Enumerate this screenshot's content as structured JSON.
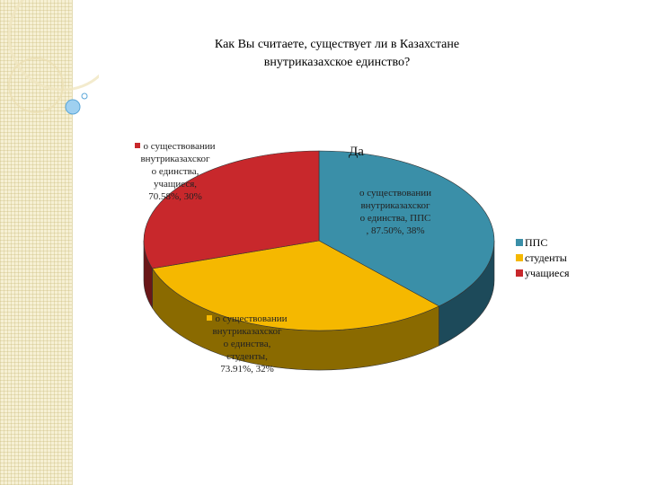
{
  "title_lines": [
    "Как Вы считаете, существует ли в Казахстане",
    "внутриказахское  единство?"
  ],
  "header_label": "Да",
  "data_labels": [
    {
      "lines": [
        "о существовании",
        "внутриказахског",
        "о единства, ППС",
        ", 87.50%, 38%"
      ],
      "color": "#3a8fa8"
    },
    {
      "lines": [
        "о существовании",
        "внутриказахског",
        "о единства,",
        "студенты,",
        "73.91%, 32%"
      ],
      "color": "#f5b800"
    },
    {
      "lines": [
        "о существовании",
        "внутриказахског",
        "о единства,",
        "учащиеся,",
        "70.58%, 30%"
      ],
      "color": "#c8282c"
    }
  ],
  "chart_data": {
    "type": "pie",
    "title": "Как Вы считаете, существует ли в Казахстане внутриказахское  единство?",
    "series_name": "Да",
    "categories": [
      "ППС",
      "студенты",
      "учащиеся"
    ],
    "values": [
      38,
      32,
      30
    ],
    "rates": [
      "87.50%",
      "73.91%",
      "70.58%"
    ],
    "colors": [
      "#3a8fa8",
      "#f5b800",
      "#c8282c"
    ],
    "side_colors": [
      "#1d4a5a",
      "#8a6a00",
      "#6a1718"
    ],
    "style": "3d",
    "legend_position": "right"
  }
}
